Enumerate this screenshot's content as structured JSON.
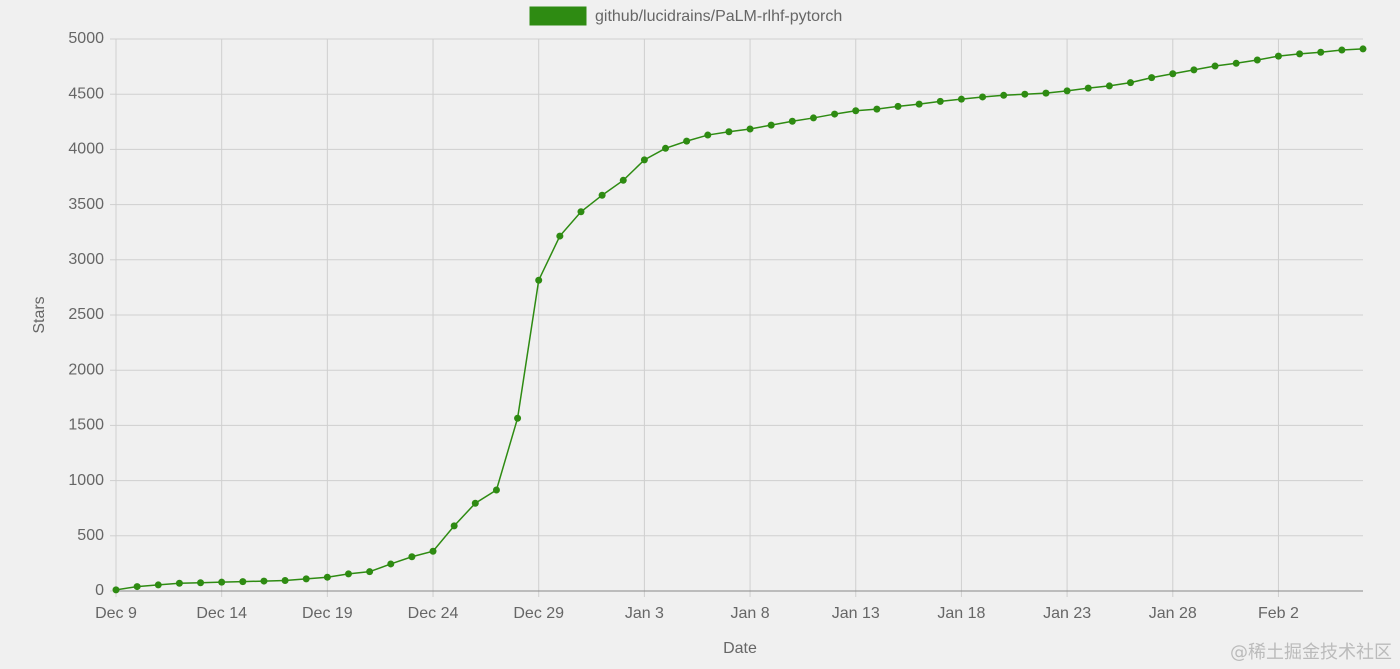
{
  "chart_data": {
    "type": "line",
    "x_label": "Date",
    "y_label": "Stars",
    "watermark": "@稀土掘金技术社区",
    "grid": true,
    "legend": "top",
    "categories": [
      "Dec 9",
      null,
      null,
      null,
      null,
      "Dec 14",
      null,
      null,
      null,
      null,
      "Dec 19",
      null,
      null,
      null,
      null,
      "Dec 24",
      null,
      null,
      null,
      null,
      "Dec 29",
      null,
      null,
      null,
      null,
      "Jan 3",
      null,
      null,
      null,
      null,
      "Jan 8",
      null,
      null,
      null,
      null,
      "Jan 13",
      null,
      null,
      null,
      null,
      "Jan 18",
      null,
      null,
      null,
      null,
      "Jan 23",
      null,
      null,
      null,
      null,
      "Jan 28",
      null,
      null,
      null,
      null,
      "Feb 2",
      null,
      null,
      null,
      null
    ],
    "series": [
      {
        "name": "github/lucidrains/PaLM-rlhf-pytorch",
        "color": "#2e8b12",
        "values": [
          10,
          40,
          55,
          70,
          75,
          80,
          85,
          90,
          95,
          110,
          125,
          155,
          175,
          245,
          310,
          360,
          590,
          795,
          915,
          1565,
          2815,
          3215,
          3435,
          3585,
          3720,
          3905,
          4010,
          4075,
          4130,
          4160,
          4185,
          4220,
          4255,
          4285,
          4320,
          4350,
          4365,
          4390,
          4410,
          4435,
          4455,
          4475,
          4490,
          4500,
          4510,
          4530,
          4555,
          4575,
          4605,
          4650,
          4685,
          4720,
          4755,
          4780,
          4810,
          4845,
          4865,
          4880,
          4900,
          4910
        ]
      }
    ],
    "ylim": [
      0,
      5000
    ],
    "yticks": [
      0,
      500,
      1000,
      1500,
      2000,
      2500,
      3000,
      3500,
      4000,
      4500,
      5000
    ]
  }
}
